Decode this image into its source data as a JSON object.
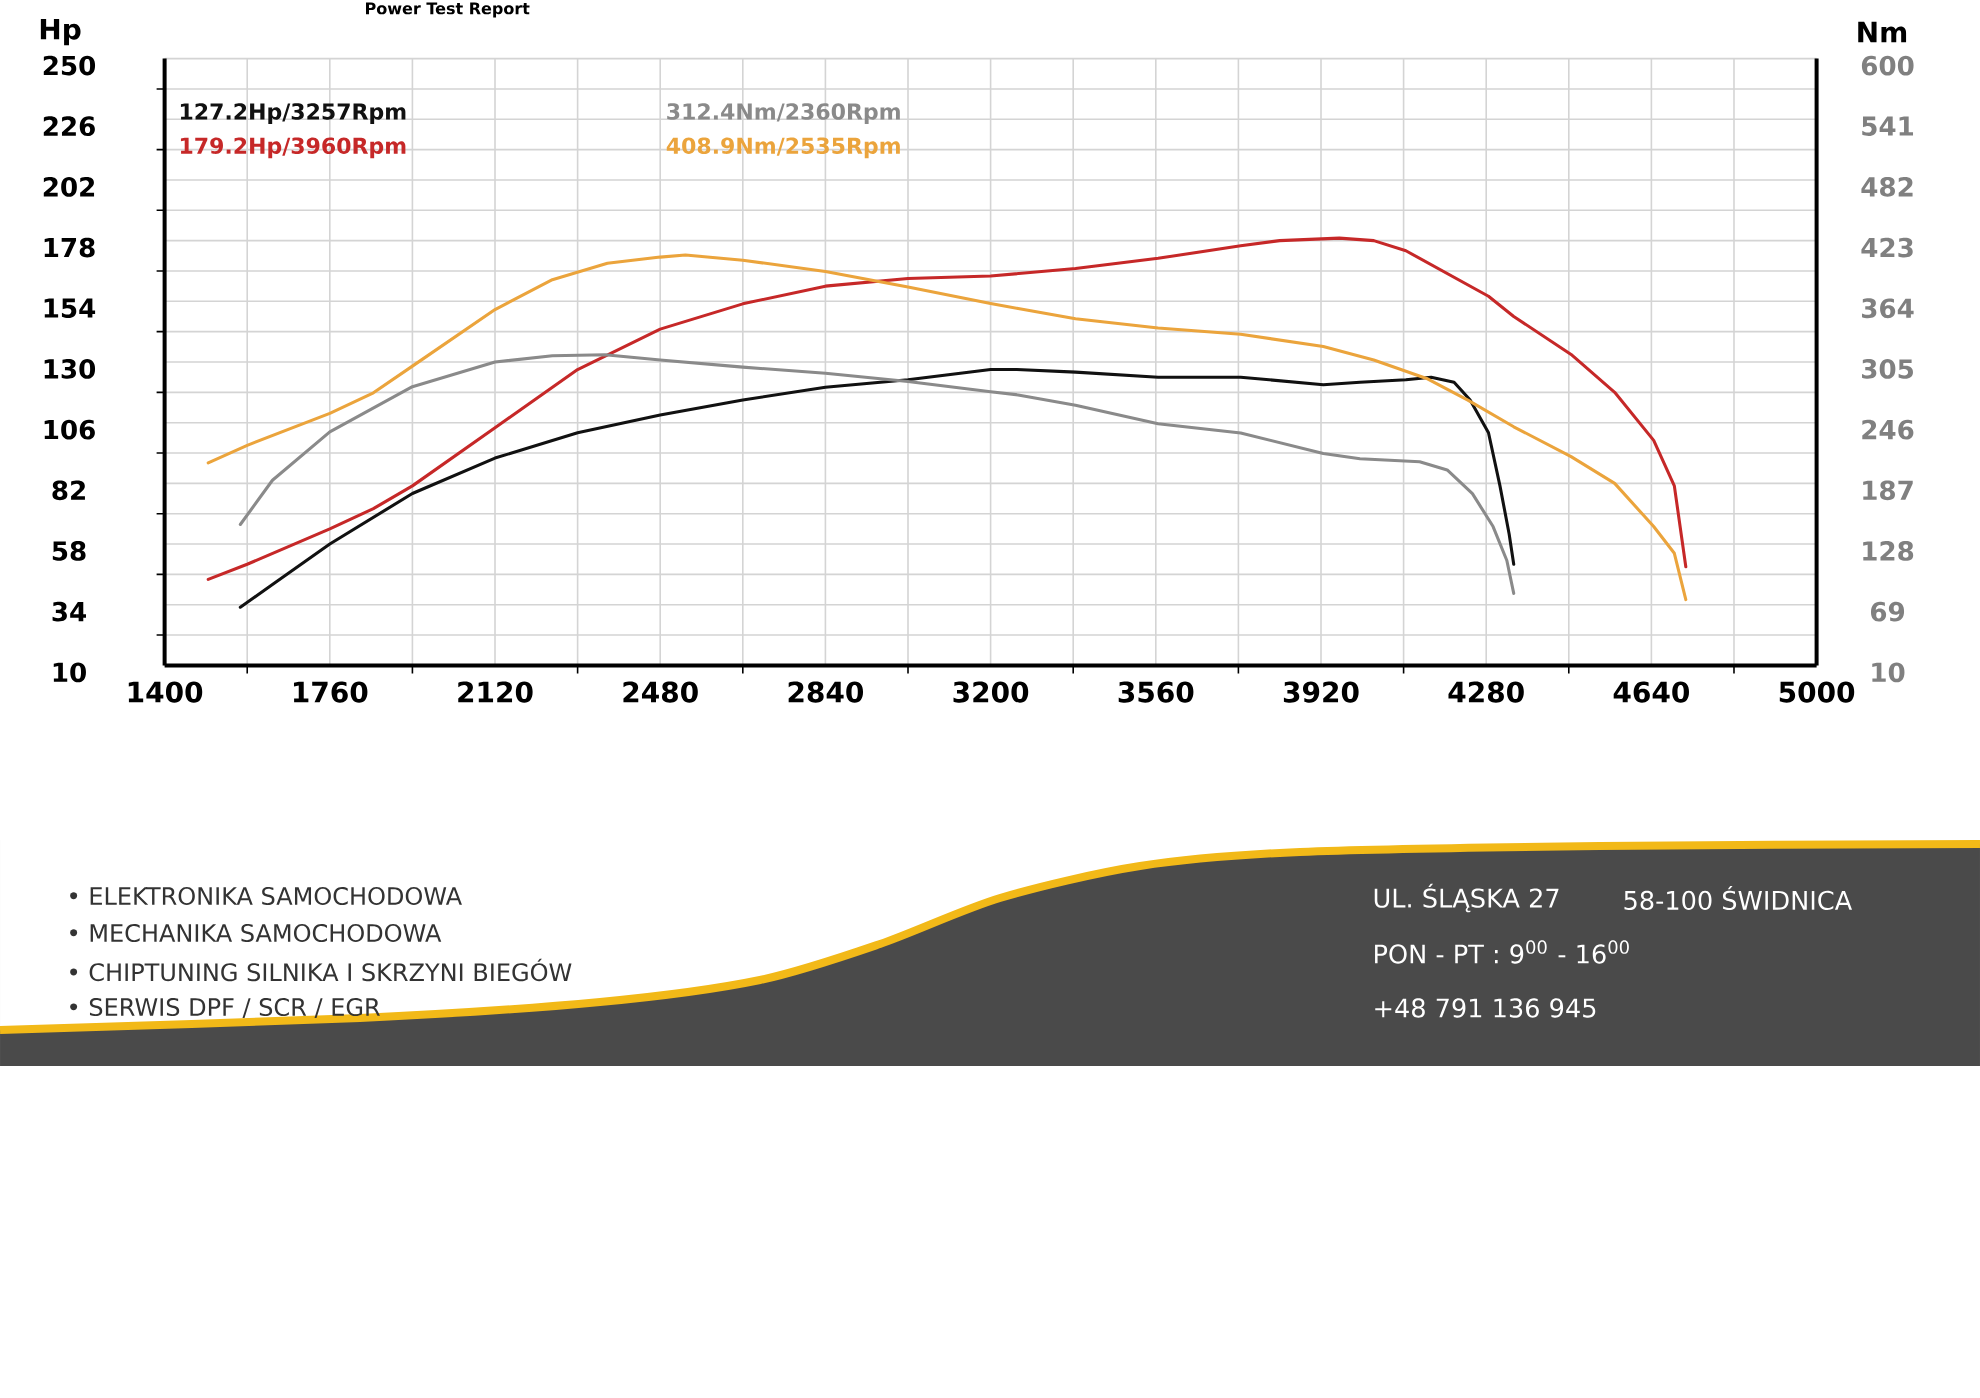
{
  "chart_data": {
    "type": "line",
    "title": "Power Test Report",
    "ylabel": "Hp",
    "y2label": "Nm",
    "xlim": [
      1400,
      5000
    ],
    "xticks": [
      1400,
      1760,
      2120,
      2480,
      2840,
      3200,
      3560,
      3920,
      4280,
      4640,
      5000
    ],
    "ylim": [
      10,
      250
    ],
    "yticks": [
      10,
      34,
      58,
      82,
      106,
      130,
      154,
      178,
      202,
      226,
      250
    ],
    "y2lim": [
      10,
      600
    ],
    "y2ticks": [
      10,
      69,
      128,
      187,
      246,
      305,
      364,
      423,
      482,
      541,
      600
    ],
    "grid": true,
    "legend": "top left",
    "series": [
      {
        "name": "127.2Hp/3257Rpm",
        "color": "#111111",
        "x": [
          1565,
          1635,
          1760,
          1940,
          2120,
          2300,
          2480,
          2660,
          2840,
          3020,
          3200,
          3257,
          3385,
          3565,
          3745,
          3925,
          4005,
          4105,
          4160,
          4210,
          4245,
          4285,
          4310,
          4330,
          4340
        ],
        "values": [
          33,
          42,
          58,
          78,
          92,
          102,
          109,
          115,
          120,
          123,
          127,
          127,
          126,
          124,
          124,
          121,
          122,
          123,
          124,
          122,
          115,
          102,
          81,
          62,
          50
        ]
      },
      {
        "name": "312.4Nm/2360Rpm",
        "color": "#8a8a8a",
        "axis": "y2",
        "x": [
          1565,
          1635,
          1760,
          1940,
          2120,
          2245,
          2360,
          2480,
          2660,
          2840,
          3020,
          3200,
          3260,
          3385,
          3565,
          3745,
          3925,
          4005,
          4135,
          4195,
          4250,
          4295,
          4325,
          4340
        ],
        "values": [
          147,
          190,
          237,
          281,
          305,
          311,
          312,
          307,
          300,
          294,
          286,
          276,
          273,
          263,
          245,
          236,
          216,
          211,
          208,
          200,
          177,
          145,
          112,
          80
        ]
      },
      {
        "name": "179.2Hp/3960Rpm",
        "color": "#c62828",
        "x": [
          1495,
          1580,
          1760,
          1855,
          1940,
          2120,
          2300,
          2480,
          2660,
          2840,
          3020,
          3200,
          3385,
          3565,
          3745,
          3830,
          3960,
          4035,
          4105,
          4195,
          4285,
          4340,
          4465,
          4560,
          4645,
          4690,
          4715
        ],
        "values": [
          44,
          50,
          64,
          72,
          81,
          104,
          127,
          143,
          153,
          160,
          163,
          164,
          167,
          171,
          176,
          178,
          179,
          178,
          174,
          165,
          156,
          148,
          133,
          118,
          99,
          81,
          49
        ]
      },
      {
        "name": "408.9Nm/2535Rpm",
        "color": "#eba43c",
        "axis": "y2",
        "x": [
          1495,
          1580,
          1760,
          1855,
          1940,
          2120,
          2245,
          2365,
          2480,
          2535,
          2660,
          2840,
          3020,
          3200,
          3260,
          3385,
          3565,
          3745,
          3925,
          4035,
          4150,
          4240,
          4340,
          4465,
          4560,
          4645,
          4690,
          4715
        ],
        "values": [
          207,
          224,
          255,
          275,
          301,
          356,
          385,
          401,
          407,
          409,
          404,
          393,
          378,
          362,
          357,
          347,
          338,
          332,
          320,
          307,
          289,
          268,
          242,
          213,
          187,
          145,
          119,
          74
        ]
      }
    ],
    "annotations": [
      "• ELEKTRONIKA SAMOCHODOWA",
      "• MECHANIKA SAMOCHODOWA",
      "• CHIPTUNING SILNIKA I SKRZYNI BIEGÓW",
      "• SERWIS DPF / SCR / EGR",
      "UL. ŚLĄSKA 27",
      "58-100 ŚWIDNICA",
      "PON - PT :  9$^{00}$ - 16$^{00}$",
      "+48 791 136 945"
    ]
  }
}
